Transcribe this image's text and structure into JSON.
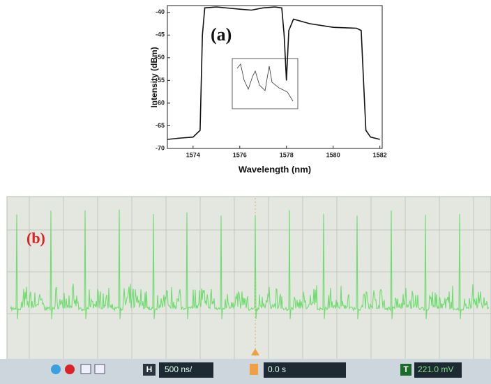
{
  "chart_data": {
    "type": "line",
    "annotation": "(a)",
    "xlabel": "Wavelength (nm)",
    "ylabel": "Intensity (dBm)",
    "x": [
      1572.9,
      1573.5,
      1574,
      1574.3,
      1574.4,
      1574.5,
      1575,
      1576,
      1576.5,
      1577,
      1577.5,
      1577.8,
      1577.9,
      1578,
      1578.1,
      1578.3,
      1579,
      1580,
      1581,
      1581.2,
      1581.3,
      1581.4,
      1581.6,
      1582
    ],
    "values": [
      -68,
      -67.7,
      -67.5,
      -66,
      -45,
      -39,
      -38.8,
      -39.3,
      -39.5,
      -39,
      -38.8,
      -39,
      -45,
      -55,
      -44,
      -41.5,
      -42.5,
      -43.3,
      -43.5,
      -44,
      -55,
      -66,
      -67.5,
      -68
    ],
    "color": "#111111",
    "xlim": [
      1572.9,
      1582.1
    ],
    "ylim": [
      -70,
      -38.5
    ],
    "xticks": [
      1574,
      1576,
      1578,
      1580,
      1582
    ],
    "yticks": [
      -70,
      -65,
      -60,
      -55,
      -50,
      -45,
      -40
    ]
  },
  "scope": {
    "label": "(b)",
    "h_button": "H",
    "timebase": "500 ns/",
    "delay": "0.0 s",
    "t_button": "T",
    "trigger_level": "221.0 mV"
  }
}
